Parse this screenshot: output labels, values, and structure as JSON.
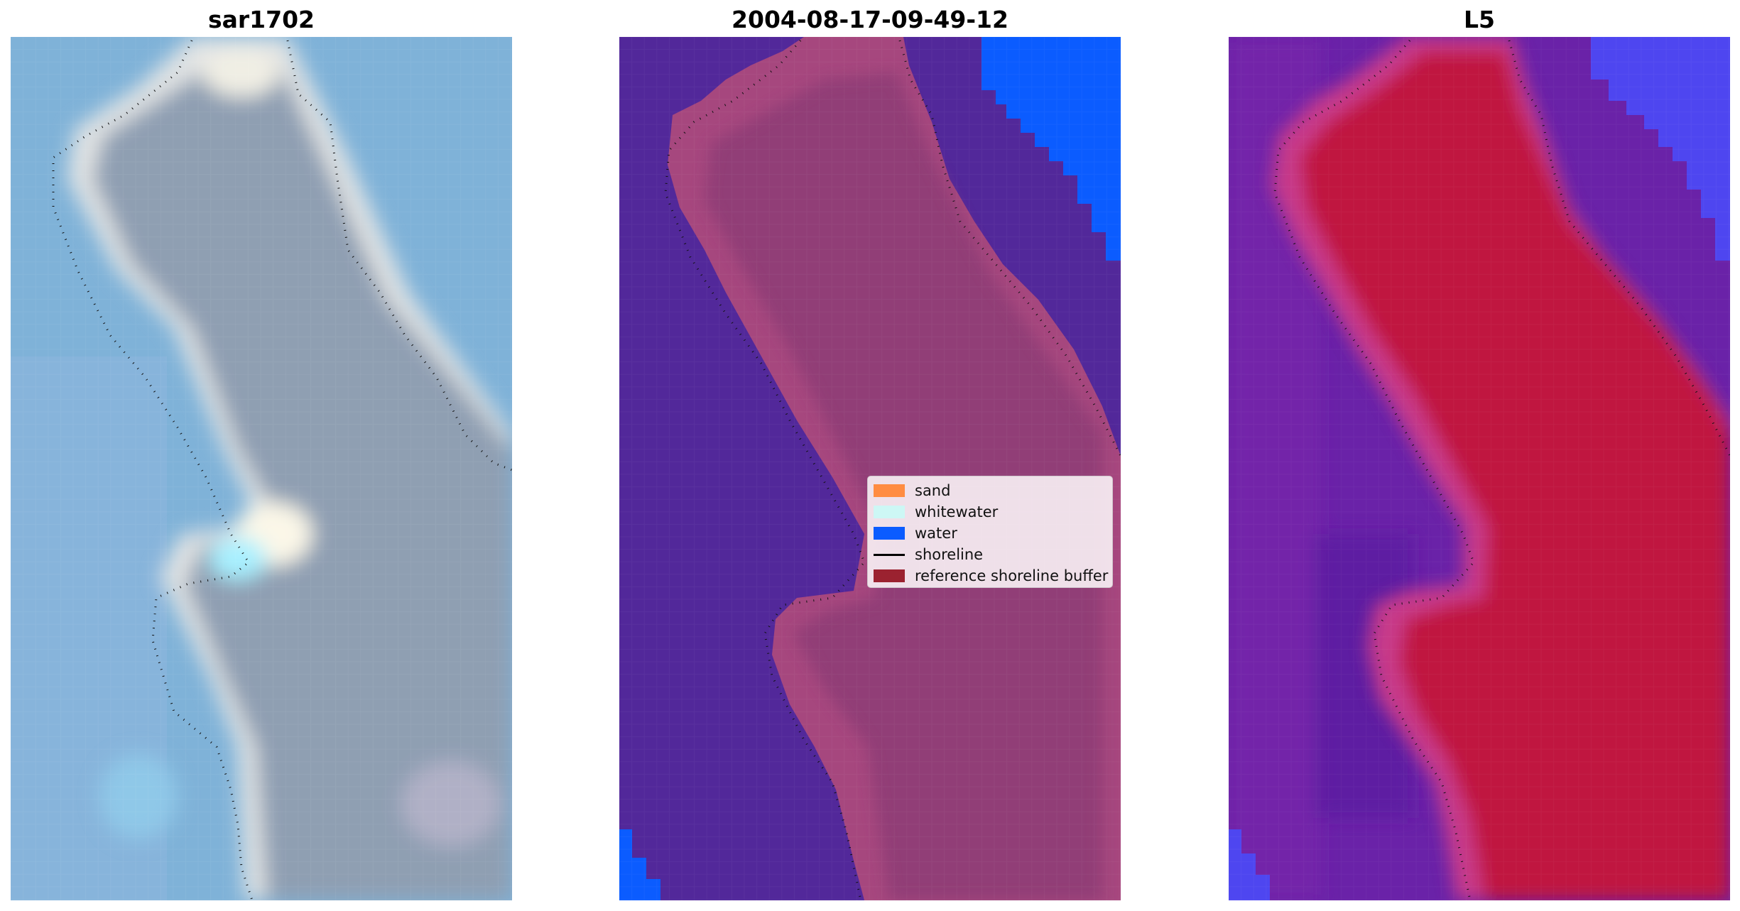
{
  "panels": [
    {
      "title": "sar1702"
    },
    {
      "title": "2004-08-17-09-49-12"
    },
    {
      "title": "L5"
    }
  ],
  "legend": {
    "items": [
      {
        "label": "sand",
        "color": "#ff8c42",
        "kind": "patch"
      },
      {
        "label": "whitewater",
        "color": "#cdf7f5",
        "kind": "patch"
      },
      {
        "label": "water",
        "color": "#0b5cff",
        "kind": "patch"
      },
      {
        "label": "shoreline",
        "color": "#000000",
        "kind": "line"
      },
      {
        "label": "reference shoreline buffer",
        "color": "#9b2230",
        "kind": "patch"
      }
    ]
  },
  "colors": {
    "rgb_water": "#7fb2d8",
    "rgb_land": "#8f9fb2",
    "class_water_deep": "#52289a",
    "class_land": "#a6477e",
    "class_water_bright": "#0b5cff",
    "index_water": "#6a22a8",
    "index_land": "#c0123f",
    "index_blue": "#4e46f0"
  }
}
